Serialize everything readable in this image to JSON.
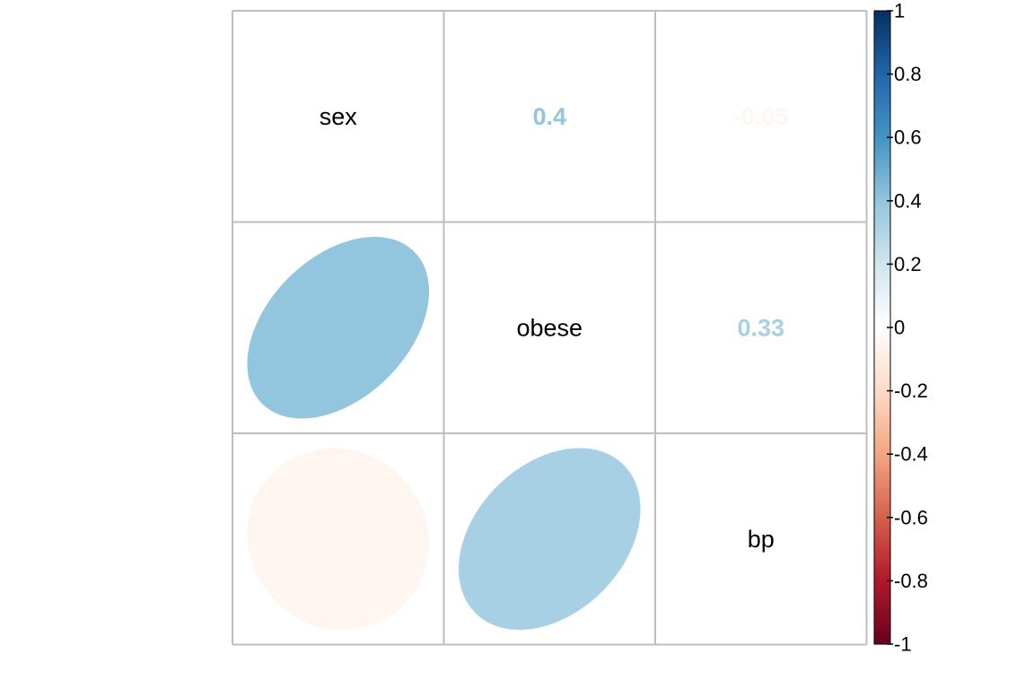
{
  "chart_data": {
    "type": "heatmap",
    "variables": [
      "sex",
      "obese",
      "bp"
    ],
    "matrix": [
      [
        1,
        0.4,
        -0.05
      ],
      [
        0.4,
        1,
        0.33
      ],
      [
        -0.05,
        0.33,
        1
      ]
    ],
    "coefficient_labels": [
      {
        "row": 0,
        "col": 1,
        "text": "0.4",
        "value": 0.4
      },
      {
        "row": 0,
        "col": 2,
        "text": "-0.05",
        "value": -0.05
      },
      {
        "row": 1,
        "col": 2,
        "text": "0.33",
        "value": 0.33
      }
    ],
    "lower_method": "ellipse",
    "upper_method": "number",
    "diagonal": "variable names",
    "colorbar": {
      "range": [
        -1,
        1
      ],
      "ticks": [
        "1",
        "0.8",
        "0.6",
        "0.4",
        "0.2",
        "0",
        "-0.2",
        "-0.4",
        "-0.6",
        "-0.8",
        "-1"
      ],
      "tick_values": [
        1,
        0.8,
        0.6,
        0.4,
        0.2,
        0,
        -0.2,
        -0.4,
        -0.6,
        -0.8,
        -1
      ],
      "palette": [
        "#67001F",
        "#B2182B",
        "#D6604D",
        "#F4A582",
        "#FDDBC7",
        "#FFFFFF",
        "#D1E5F0",
        "#92C5DE",
        "#4393C3",
        "#2166AC",
        "#053061"
      ]
    },
    "grid_color": "#bebebe"
  }
}
